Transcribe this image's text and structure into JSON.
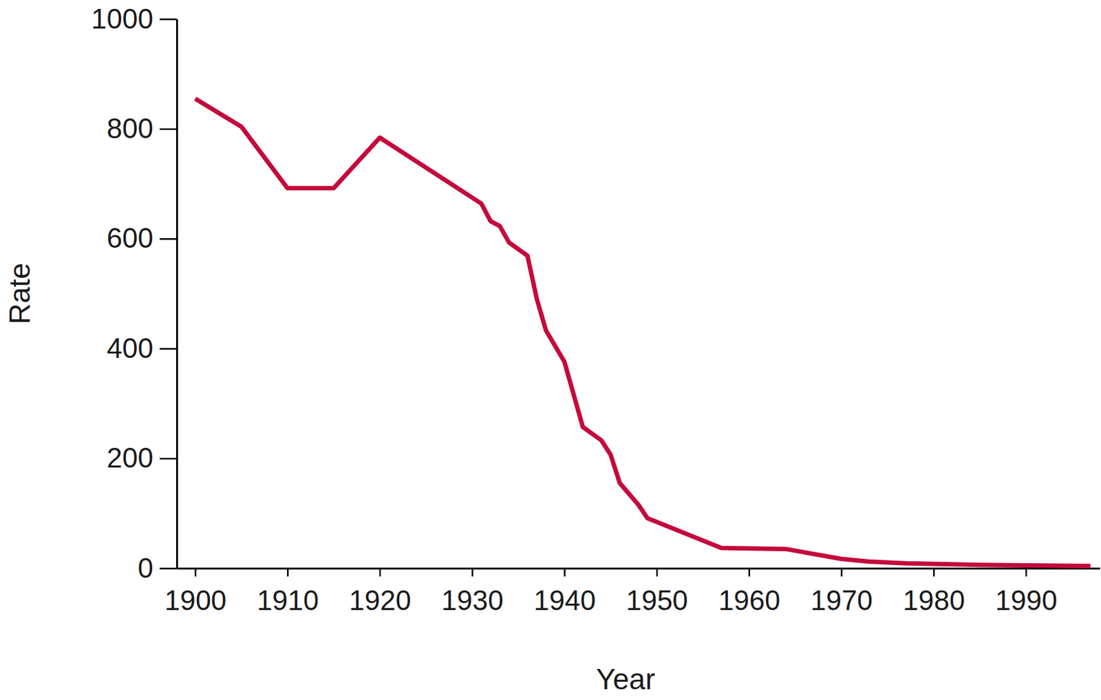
{
  "chart_data": {
    "type": "line",
    "xlabel": "Year",
    "ylabel": "Rate",
    "x": [
      1900,
      1905,
      1910,
      1915,
      1920,
      1931,
      1932,
      1933,
      1934,
      1936,
      1937,
      1938,
      1940,
      1942,
      1944,
      1945,
      1946,
      1948,
      1949,
      1957,
      1964,
      1966,
      1970,
      1973,
      1977,
      1985,
      1997
    ],
    "values": [
      855,
      804,
      692,
      692,
      784,
      664,
      632,
      623,
      593,
      569,
      491,
      433,
      376,
      257,
      233,
      207,
      155,
      116,
      91,
      37,
      35,
      29,
      17,
      12,
      9,
      6,
      4
    ],
    "color": "#c40a3c",
    "xlim": [
      1898,
      1998
    ],
    "ylim": [
      0,
      1000
    ],
    "xticks": [
      1900,
      1910,
      1920,
      1930,
      1940,
      1950,
      1960,
      1970,
      1980,
      1990
    ],
    "yticks": [
      0,
      200,
      400,
      600,
      800,
      1000
    ]
  }
}
